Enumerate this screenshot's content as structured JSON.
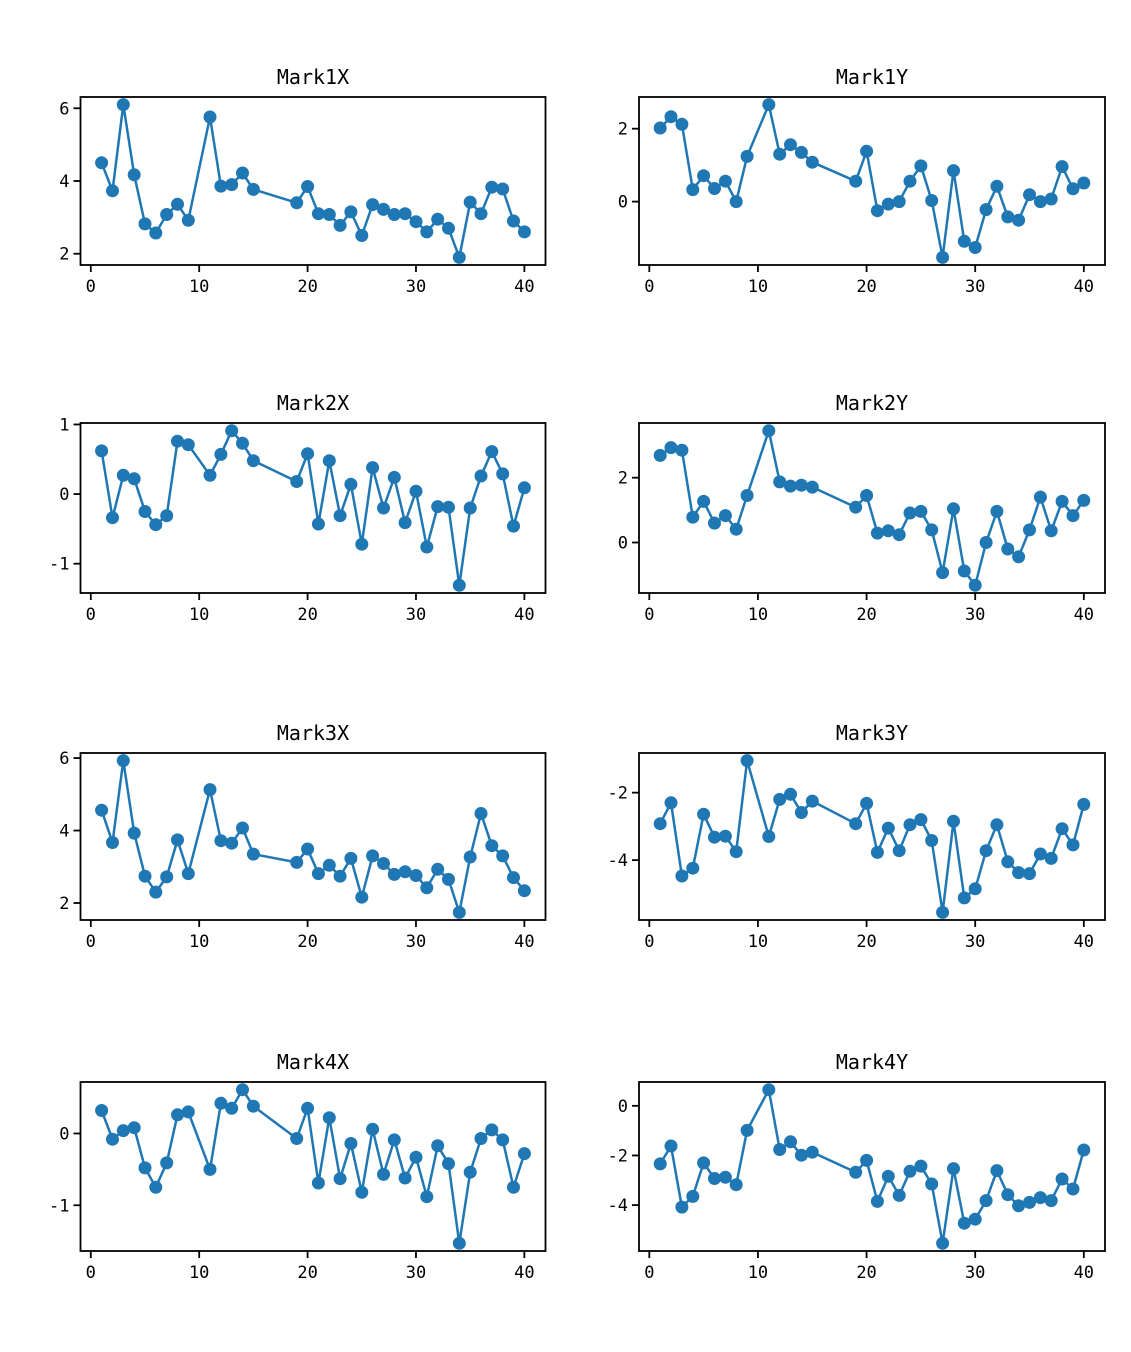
{
  "figure": {
    "background": "#ffffff",
    "line_color": "#1f77b4",
    "marker_color": "#1f77b4",
    "axis_color": "#000000",
    "text_color": "#000000"
  },
  "chart_data": {
    "type": "line",
    "grid": false,
    "legend": false,
    "marker": "o",
    "layout": "4 rows x 2 columns",
    "x": [
      1,
      2,
      3,
      4,
      5,
      6,
      7,
      8,
      9,
      11,
      12,
      13,
      14,
      15,
      19,
      20,
      21,
      22,
      23,
      24,
      25,
      26,
      27,
      28,
      29,
      30,
      31,
      32,
      33,
      34,
      35,
      36,
      37,
      38,
      39,
      40
    ],
    "xticks": [
      0,
      10,
      20,
      30,
      40
    ],
    "xlim": [
      -0.95,
      41.95
    ],
    "charts": [
      {
        "title": "Mark1X",
        "yticks": [
          2,
          4,
          6
        ],
        "values": [
          4.5,
          3.73,
          6.1,
          4.17,
          2.82,
          2.57,
          3.08,
          3.36,
          2.92,
          5.76,
          3.86,
          3.9,
          4.22,
          3.77,
          3.4,
          3.85,
          3.1,
          3.08,
          2.78,
          3.15,
          2.5,
          3.35,
          3.22,
          3.08,
          3.1,
          2.88,
          2.6,
          2.95,
          2.7,
          1.9,
          3.42,
          3.1,
          3.83,
          3.78,
          2.9,
          2.6
        ]
      },
      {
        "title": "Mark1Y",
        "yticks": [
          0,
          2
        ],
        "values": [
          2.02,
          2.33,
          2.12,
          0.33,
          0.71,
          0.36,
          0.56,
          0.0,
          1.24,
          2.66,
          1.3,
          1.56,
          1.35,
          1.08,
          0.56,
          1.38,
          -0.25,
          -0.07,
          0.0,
          0.56,
          0.98,
          0.03,
          -1.53,
          0.85,
          -1.09,
          -1.26,
          -0.22,
          0.42,
          -0.42,
          -0.51,
          0.19,
          0.0,
          0.07,
          0.96,
          0.35,
          0.51
        ]
      },
      {
        "title": "Mark2X",
        "yticks": [
          -1,
          0,
          1
        ],
        "values": [
          0.62,
          -0.34,
          0.27,
          0.22,
          -0.25,
          -0.44,
          -0.31,
          0.76,
          0.71,
          0.27,
          0.57,
          0.91,
          0.73,
          0.48,
          0.18,
          0.58,
          -0.43,
          0.48,
          -0.31,
          0.14,
          -0.72,
          0.38,
          -0.2,
          0.24,
          -0.41,
          0.04,
          -0.76,
          -0.18,
          -0.19,
          -1.31,
          -0.2,
          0.26,
          0.61,
          0.29,
          -0.46,
          0.09
        ]
      },
      {
        "title": "Mark2Y",
        "yticks": [
          0,
          2
        ],
        "values": [
          2.69,
          2.93,
          2.85,
          0.78,
          1.27,
          0.6,
          0.83,
          0.41,
          1.45,
          3.45,
          1.87,
          1.74,
          1.77,
          1.71,
          1.09,
          1.45,
          0.29,
          0.36,
          0.24,
          0.91,
          0.96,
          0.39,
          -0.93,
          1.04,
          -0.88,
          -1.32,
          0.0,
          0.96,
          -0.2,
          -0.44,
          0.39,
          1.4,
          0.36,
          1.27,
          0.83,
          1.3
        ]
      },
      {
        "title": "Mark3X",
        "yticks": [
          2,
          4,
          6
        ],
        "values": [
          4.56,
          3.67,
          5.93,
          3.93,
          2.74,
          2.3,
          2.72,
          3.74,
          2.81,
          5.13,
          3.72,
          3.65,
          4.07,
          3.35,
          3.12,
          3.49,
          2.81,
          3.04,
          2.74,
          3.23,
          2.16,
          3.3,
          3.09,
          2.79,
          2.86,
          2.76,
          2.42,
          2.93,
          2.65,
          1.74,
          3.27,
          4.47,
          3.58,
          3.3,
          2.7,
          2.34
        ]
      },
      {
        "title": "Mark3Y",
        "yticks": [
          -4,
          -2
        ],
        "values": [
          -2.92,
          -2.3,
          -4.47,
          -4.24,
          -2.64,
          -3.32,
          -3.29,
          -3.75,
          -1.05,
          -3.3,
          -2.2,
          -2.05,
          -2.59,
          -2.25,
          -2.92,
          -2.32,
          -3.77,
          -3.05,
          -3.72,
          -2.95,
          -2.8,
          -3.42,
          -5.55,
          -2.85,
          -5.12,
          -4.85,
          -3.72,
          -2.95,
          -4.05,
          -4.37,
          -4.4,
          -3.82,
          -3.95,
          -3.07,
          -3.55,
          -2.35
        ]
      },
      {
        "title": "Mark4X",
        "yticks": [
          -1,
          0
        ],
        "values": [
          0.32,
          -0.08,
          0.04,
          0.08,
          -0.48,
          -0.75,
          -0.41,
          0.26,
          0.3,
          -0.5,
          0.42,
          0.35,
          0.61,
          0.38,
          -0.07,
          0.35,
          -0.69,
          0.22,
          -0.63,
          -0.14,
          -0.82,
          0.06,
          -0.57,
          -0.09,
          -0.62,
          -0.33,
          -0.88,
          -0.17,
          -0.42,
          -1.53,
          -0.54,
          -0.07,
          0.05,
          -0.09,
          -0.75,
          -0.28
        ]
      },
      {
        "title": "Mark4Y",
        "yticks": [
          -4,
          -2,
          0
        ],
        "values": [
          -2.34,
          -1.62,
          -4.08,
          -3.65,
          -2.3,
          -2.93,
          -2.88,
          -3.18,
          -0.99,
          0.65,
          -1.76,
          -1.45,
          -1.99,
          -1.87,
          -2.68,
          -2.2,
          -3.85,
          -2.84,
          -3.61,
          -2.64,
          -2.43,
          -3.15,
          -5.54,
          -2.53,
          -4.73,
          -4.57,
          -3.82,
          -2.61,
          -3.58,
          -4.03,
          -3.89,
          -3.7,
          -3.82,
          -2.95,
          -3.35,
          -1.78
        ]
      }
    ]
  }
}
